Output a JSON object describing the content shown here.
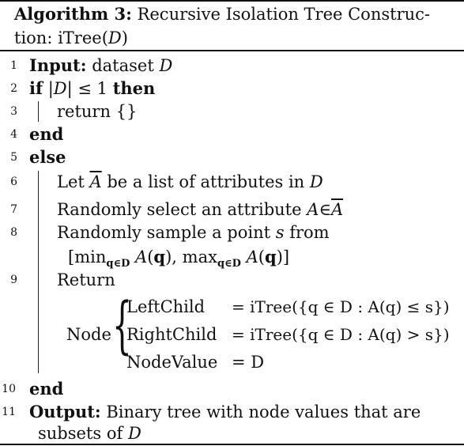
{
  "caption": {
    "label": "Algorithm 3:",
    "title_1": "Recursive Isolation Tree Construc-",
    "title_2a": "tion: iTree(",
    "title_2b": "D",
    "title_2c": ")"
  },
  "line_numbers": [
    "1",
    "2",
    "3",
    "4",
    "5",
    "6",
    "7",
    "8",
    "9",
    "10",
    "11"
  ],
  "lines": {
    "l1_kw": "Input:",
    "l1_text": "dataset",
    "l1_var": "D",
    "l2_kw": "if",
    "l2_expr_a": "|",
    "l2_expr_var": "D",
    "l2_expr_b": "| ≤ 1",
    "l2_then": "then",
    "l3": "return {}",
    "l4": "end",
    "l5": "else",
    "l6_a": "Let",
    "l6_var": "A",
    "l6_b": "be a list of attributes in",
    "l6_var2": "D",
    "l7_a": "Randomly select an attribute",
    "l7_var": "A",
    "l7_in": "∈",
    "l7_var2": "A",
    "l8_a": "Randomly sample a point",
    "l8_var": "s",
    "l8_b": "from",
    "l8_c1": "[min",
    "l8_sub1": "q∈D",
    "l8_c2": "A",
    "l8_c3": "(",
    "l8_q1": "q",
    "l8_c4": "), max",
    "l8_sub2": "q∈D",
    "l8_c5": "A",
    "l8_c6": "(",
    "l8_q2": "q",
    "l8_c7": ")]",
    "l9": "Return",
    "node_label": "Node",
    "left_label": "LeftChild",
    "left_expr": "= iTree({q ∈ D : A(q) ≤ s})",
    "right_label": "RightChild",
    "right_expr": "= iTree({q ∈ D : A(q) > s})",
    "value_label": "NodeValue",
    "value_expr": "= D",
    "l10": "end",
    "l11_kw": "Output:",
    "l11_text": "Binary tree with node values that are",
    "l11_text2": "subsets of",
    "l11_var": "D"
  }
}
